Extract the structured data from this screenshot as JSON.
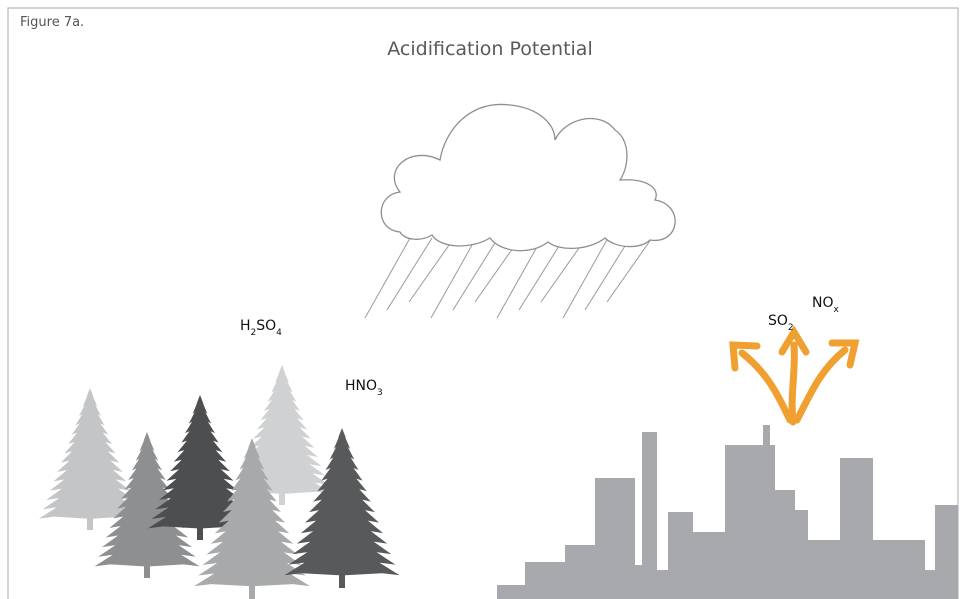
{
  "figure_label": "Figure 7a.",
  "title": "Acidification Potential",
  "labels": [
    {
      "name": "sulfuric-acid",
      "parts": [
        "H",
        "2",
        "SO",
        "4"
      ]
    },
    {
      "name": "nitric-acid",
      "parts": [
        "HNO",
        "3"
      ]
    },
    {
      "name": "sulfur-dioxide",
      "parts": [
        "SO",
        "2"
      ]
    },
    {
      "name": "nitrogen-oxides",
      "parts": [
        "NO",
        "x"
      ]
    }
  ]
}
